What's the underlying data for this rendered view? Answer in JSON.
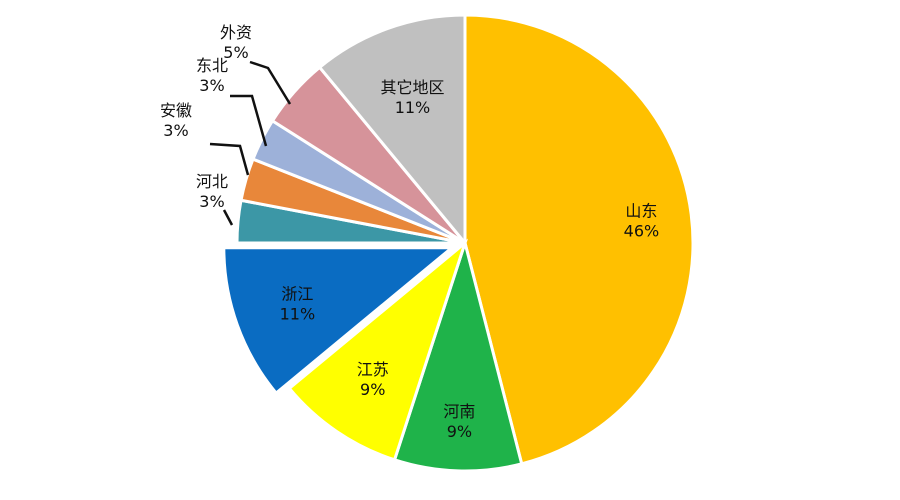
{
  "chart_data": {
    "type": "pie",
    "title": "",
    "slices": [
      {
        "label": "山东",
        "value": 46,
        "value_label": "46%",
        "color": "#FFC000"
      },
      {
        "label": "河南",
        "value": 9,
        "value_label": "9%",
        "color": "#1FB34A"
      },
      {
        "label": "江苏",
        "value": 9,
        "value_label": "9%",
        "color": "#FFFF00"
      },
      {
        "label": "浙江",
        "value": 11,
        "value_label": "11%",
        "color": "#0A6CC2"
      },
      {
        "label": "河北",
        "value": 3,
        "value_label": "3%",
        "color": "#3C97A6"
      },
      {
        "label": "安徽",
        "value": 3,
        "value_label": "3%",
        "color": "#E8873A"
      },
      {
        "label": "东北",
        "value": 3,
        "value_label": "3%",
        "color": "#9DB1D9"
      },
      {
        "label": "外资",
        "value": 5,
        "value_label": "5%",
        "color": "#D6939A"
      },
      {
        "label": "其它地区",
        "value": 11,
        "value_label": "11%",
        "color": "#C0C0C0"
      }
    ],
    "start_angle": "12 o'clock",
    "direction": "clockwise",
    "exploded": [
      "浙江"
    ],
    "legend": "none"
  }
}
